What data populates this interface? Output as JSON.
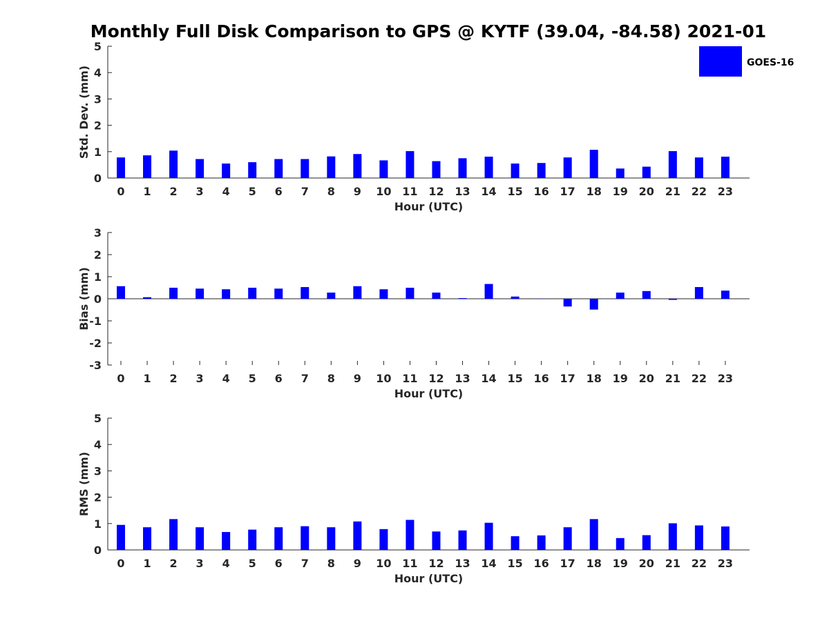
{
  "title": "Monthly Full Disk Comparison to GPS @ KYTF (39.04, -84.58) 2021-01",
  "legend": {
    "label": "GOES-16",
    "color": "#0000ff",
    "placement": "top-right"
  },
  "chart_data": [
    {
      "type": "bar",
      "series_name": "GOES-16",
      "xlabel": "Hour (UTC)",
      "ylabel": "Std. Dev. (mm)",
      "ylim": [
        0,
        5
      ],
      "yticks": [
        0,
        1,
        2,
        3,
        4,
        5
      ],
      "categories": [
        0,
        1,
        2,
        3,
        4,
        5,
        6,
        7,
        8,
        9,
        10,
        11,
        12,
        13,
        14,
        15,
        16,
        17,
        18,
        19,
        20,
        21,
        22,
        23
      ],
      "values": [
        0.78,
        0.86,
        1.04,
        0.72,
        0.55,
        0.6,
        0.72,
        0.72,
        0.82,
        0.91,
        0.67,
        1.02,
        0.64,
        0.75,
        0.81,
        0.55,
        0.57,
        0.78,
        1.07,
        0.36,
        0.43,
        1.02,
        0.78,
        0.81
      ]
    },
    {
      "type": "bar",
      "series_name": "GOES-16",
      "xlabel": "Hour (UTC)",
      "ylabel": "Bias (mm)",
      "ylim": [
        -3,
        3
      ],
      "yticks": [
        -3,
        -2,
        -1,
        0,
        1,
        2,
        3
      ],
      "categories": [
        0,
        1,
        2,
        3,
        4,
        5,
        6,
        7,
        8,
        9,
        10,
        11,
        12,
        13,
        14,
        15,
        16,
        17,
        18,
        19,
        20,
        21,
        22,
        23
      ],
      "values": [
        0.57,
        0.07,
        0.5,
        0.46,
        0.43,
        0.5,
        0.46,
        0.53,
        0.28,
        0.57,
        0.43,
        0.5,
        0.28,
        0.03,
        0.67,
        0.1,
        0.0,
        -0.35,
        -0.49,
        0.28,
        0.35,
        -0.05,
        0.53,
        0.37
      ]
    },
    {
      "type": "bar",
      "series_name": "GOES-16",
      "xlabel": "Hour (UTC)",
      "ylabel": "RMS (mm)",
      "ylim": [
        0,
        5
      ],
      "yticks": [
        0,
        1,
        2,
        3,
        4,
        5
      ],
      "categories": [
        0,
        1,
        2,
        3,
        4,
        5,
        6,
        7,
        8,
        9,
        10,
        11,
        12,
        13,
        14,
        15,
        16,
        17,
        18,
        19,
        20,
        21,
        22,
        23
      ],
      "values": [
        0.95,
        0.86,
        1.17,
        0.86,
        0.68,
        0.77,
        0.86,
        0.9,
        0.86,
        1.08,
        0.79,
        1.14,
        0.7,
        0.74,
        1.03,
        0.52,
        0.55,
        0.86,
        1.17,
        0.45,
        0.56,
        1.01,
        0.93,
        0.89
      ]
    }
  ]
}
